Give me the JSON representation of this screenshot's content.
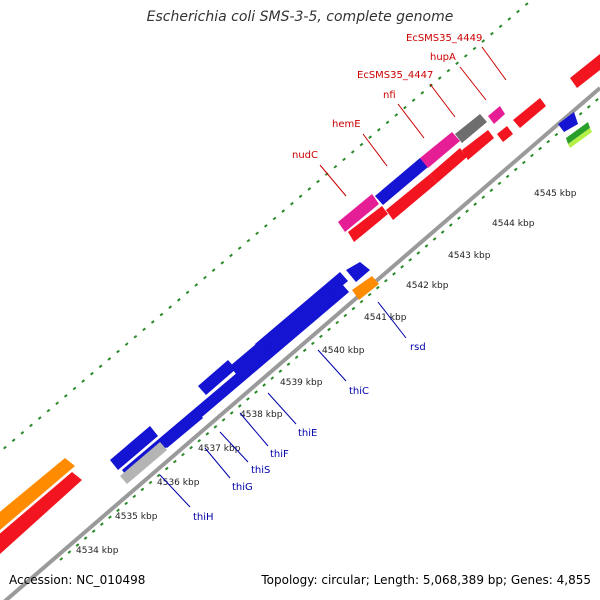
{
  "title": "Escherichia coli SMS-3-5, complete genome",
  "footer": {
    "accession": "Accession: NC_010498",
    "stats": "Topology: circular; Length: 5,068,389 bp; Genes: 4,855"
  },
  "colors": {
    "red": "#f2141e",
    "blue": "#1414d2",
    "orange": "#ff8c00",
    "magenta": "#e61e96",
    "gray": "#6e6e6e",
    "green": "#2a9e2a",
    "backbone": "#999999",
    "tick": "#2a8a2a",
    "label_red": "#cc0000",
    "label_blue": "#0000aa"
  },
  "kbp_labels": [
    "4534 kbp",
    "4535 kbp",
    "4536 kbp",
    "4537 kbp",
    "4538 kbp",
    "4539 kbp",
    "4540 kbp",
    "4541 kbp",
    "4542 kbp",
    "4543 kbp",
    "4544 kbp",
    "4545 kbp"
  ],
  "gene_labels_top": [
    "nudC",
    "hemE",
    "nfi",
    "EcSMS35_4447",
    "hupA",
    "EcSMS35_4449"
  ],
  "gene_labels_bottom": [
    "thiH",
    "thiG",
    "thiS",
    "thiF",
    "thiE",
    "thiC",
    "rsd"
  ]
}
